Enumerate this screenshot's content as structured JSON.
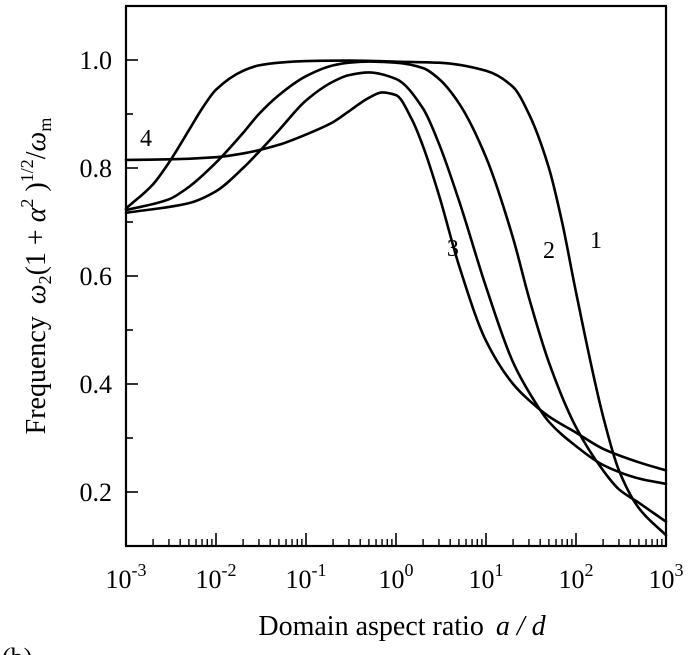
{
  "panel_tag": "(b)",
  "chart_data": {
    "type": "line",
    "title": "",
    "xlabel": "Domain aspect ratio",
    "xlabel_var": "a / d",
    "ylabel_prefix": "Frequency",
    "ylabel_expr": "ω2(1 + α2)1/2/ωm",
    "x_scale": "log",
    "xlim": [
      0.001,
      1000
    ],
    "ylim": [
      0.1,
      1.1
    ],
    "grid": false,
    "legend": "none",
    "x_ticks": [
      {
        "value": 0.001,
        "base": "10",
        "exp": "-3"
      },
      {
        "value": 0.01,
        "base": "10",
        "exp": "-2"
      },
      {
        "value": 0.1,
        "base": "10",
        "exp": "-1"
      },
      {
        "value": 1,
        "base": "10",
        "exp": "0"
      },
      {
        "value": 10,
        "base": "10",
        "exp": "1"
      },
      {
        "value": 100,
        "base": "10",
        "exp": "2"
      },
      {
        "value": 1000,
        "base": "10",
        "exp": "3"
      }
    ],
    "y_ticks": [
      "0.2",
      "0.4",
      "0.6",
      "0.8",
      "1.0"
    ],
    "series": [
      {
        "name": "1",
        "x": [
          0.001,
          0.002,
          0.003,
          0.005,
          0.007,
          0.01,
          0.02,
          0.03,
          0.05,
          0.1,
          0.3,
          1,
          3,
          10,
          20,
          30,
          50,
          70,
          100,
          200,
          300,
          500,
          1000
        ],
        "y": [
          0.725,
          0.77,
          0.81,
          0.87,
          0.91,
          0.945,
          0.98,
          0.99,
          0.995,
          0.998,
          0.999,
          0.997,
          0.995,
          0.98,
          0.95,
          0.9,
          0.8,
          0.7,
          0.57,
          0.34,
          0.24,
          0.17,
          0.12
        ]
      },
      {
        "name": "2",
        "x": [
          0.001,
          0.003,
          0.005,
          0.01,
          0.02,
          0.03,
          0.05,
          0.1,
          0.2,
          0.3,
          0.5,
          1,
          2,
          3,
          5,
          10,
          20,
          30,
          50,
          100,
          200,
          300,
          500,
          1000
        ],
        "y": [
          0.722,
          0.742,
          0.765,
          0.81,
          0.865,
          0.9,
          0.935,
          0.97,
          0.99,
          0.995,
          0.997,
          0.995,
          0.985,
          0.965,
          0.92,
          0.82,
          0.67,
          0.56,
          0.44,
          0.32,
          0.24,
          0.205,
          0.18,
          0.145
        ]
      },
      {
        "name": "3",
        "x": [
          0.001,
          0.005,
          0.01,
          0.02,
          0.03,
          0.05,
          0.1,
          0.2,
          0.3,
          0.5,
          1,
          2,
          3,
          5,
          10,
          20,
          30,
          50,
          100,
          200,
          500,
          1000
        ],
        "y": [
          0.717,
          0.735,
          0.757,
          0.8,
          0.83,
          0.87,
          0.925,
          0.96,
          0.972,
          0.977,
          0.965,
          0.91,
          0.845,
          0.74,
          0.58,
          0.44,
          0.385,
          0.33,
          0.285,
          0.25,
          0.225,
          0.215
        ]
      },
      {
        "name": "4",
        "x": [
          0.001,
          0.003,
          0.01,
          0.02,
          0.05,
          0.1,
          0.2,
          0.3,
          0.5,
          0.7,
          1,
          1.5,
          2,
          3,
          5,
          10,
          20,
          30,
          50,
          100,
          200,
          500,
          1000
        ],
        "y": [
          0.815,
          0.816,
          0.82,
          0.827,
          0.843,
          0.862,
          0.885,
          0.905,
          0.93,
          0.94,
          0.935,
          0.89,
          0.84,
          0.75,
          0.62,
          0.48,
          0.4,
          0.37,
          0.34,
          0.31,
          0.28,
          0.255,
          0.24
        ]
      }
    ]
  }
}
